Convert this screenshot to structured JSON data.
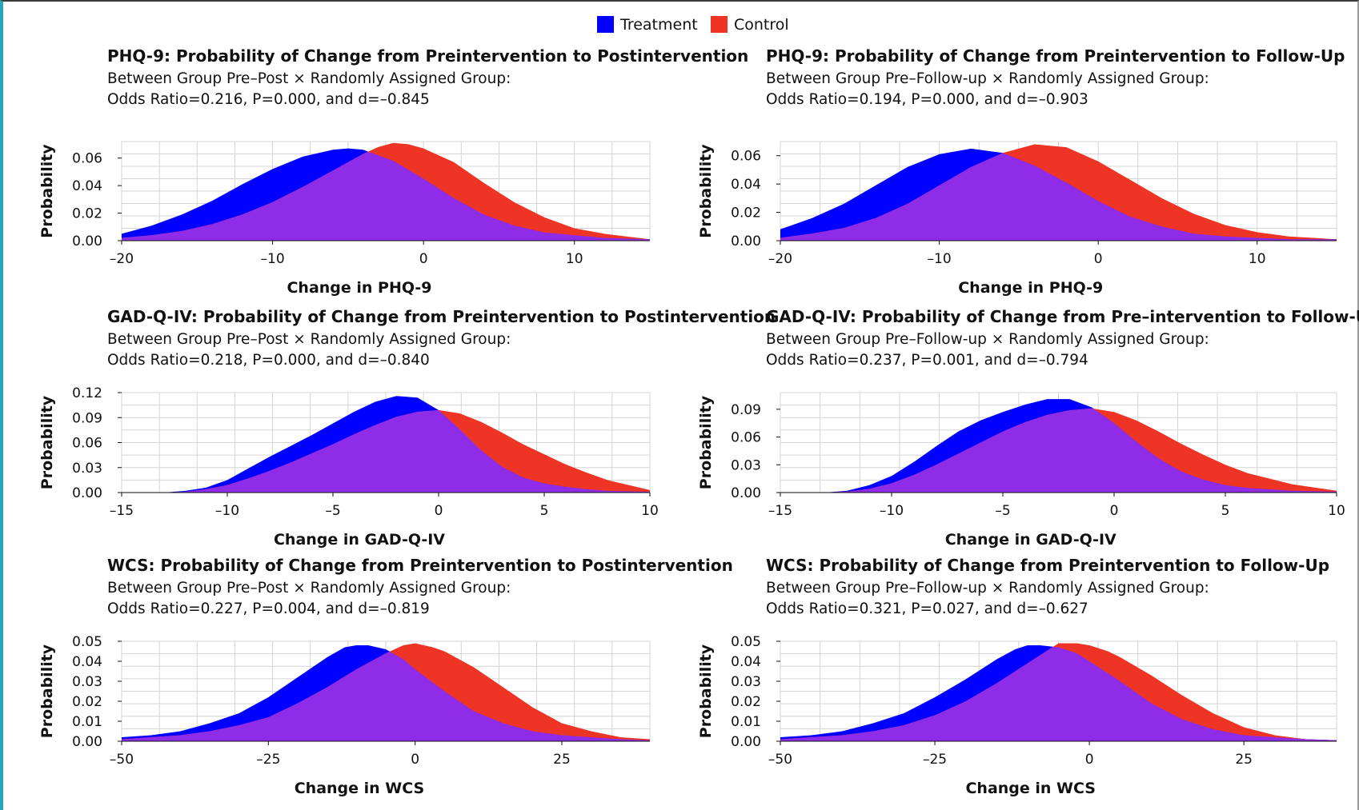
{
  "legend": {
    "treatment_label": "Treatment",
    "control_label": "Control"
  },
  "colors": {
    "treatment": "#0000ff",
    "control": "#ee3424",
    "overlap": "#8e2ce8",
    "grid": "#d4d4d4"
  },
  "chart_data": [
    {
      "type": "area",
      "title": "PHQ-9: Probability of Change from Preintervention to Postintervention",
      "subtitle_line1": "Between Group Pre–Post × Randomly Assigned Group:",
      "subtitle_line2": "Odds Ratio=0.216, P=0.000, and d=–0.845",
      "xlabel": "Change in PHQ-9",
      "ylabel": "Probability",
      "xlim": [
        -20,
        15
      ],
      "ylim": [
        0,
        0.072
      ],
      "xticks": [
        -20,
        -10,
        0,
        10
      ],
      "xtick_labels": [
        "–20",
        "–10",
        "0",
        "10"
      ],
      "yticks": [
        0,
        0.02,
        0.04,
        0.06
      ],
      "ytick_labels": [
        "0.00",
        "0.02",
        "0.04",
        "0.06"
      ],
      "grid": true,
      "series": [
        {
          "name": "Treatment",
          "x": [
            -20,
            -18,
            -16,
            -14,
            -12,
            -10,
            -8,
            -6,
            -5,
            -4,
            -2,
            0,
            2,
            4,
            6,
            8,
            10,
            12,
            15
          ],
          "y": [
            0.005,
            0.011,
            0.019,
            0.029,
            0.041,
            0.052,
            0.061,
            0.066,
            0.067,
            0.066,
            0.058,
            0.045,
            0.031,
            0.019,
            0.011,
            0.006,
            0.004,
            0.002,
            0.001
          ]
        },
        {
          "name": "Control",
          "x": [
            -20,
            -18,
            -16,
            -14,
            -12,
            -10,
            -8,
            -6,
            -4,
            -3,
            -2,
            -1,
            0,
            2,
            4,
            6,
            8,
            10,
            12,
            15
          ],
          "y": [
            0.002,
            0.004,
            0.007,
            0.012,
            0.019,
            0.028,
            0.039,
            0.051,
            0.063,
            0.068,
            0.071,
            0.07,
            0.067,
            0.057,
            0.042,
            0.028,
            0.017,
            0.009,
            0.005,
            0.001
          ]
        }
      ]
    },
    {
      "type": "area",
      "title": "PHQ-9: Probability of Change from Preintervention to Follow-Up",
      "subtitle_line1": "Between Group Pre–Follow-up × Randomly Assigned Group:",
      "subtitle_line2": "Odds Ratio=0.194, P=0.000, and d=–0.903",
      "xlabel": "Change in PHQ-9",
      "ylabel": "Probability",
      "xlim": [
        -20,
        15
      ],
      "ylim": [
        0,
        0.07
      ],
      "xticks": [
        -20,
        -10,
        0,
        10
      ],
      "xtick_labels": [
        "–20",
        "–10",
        "0",
        "10"
      ],
      "yticks": [
        0,
        0.02,
        0.04,
        0.06
      ],
      "ytick_labels": [
        "0.00",
        "0.02",
        "0.04",
        "0.06"
      ],
      "grid": true,
      "series": [
        {
          "name": "Treatment",
          "x": [
            -20,
            -18,
            -16,
            -14,
            -12,
            -10,
            -8,
            -6,
            -4,
            -2,
            0,
            2,
            4,
            6,
            8,
            10,
            12,
            15
          ],
          "y": [
            0.008,
            0.016,
            0.026,
            0.039,
            0.052,
            0.061,
            0.065,
            0.062,
            0.053,
            0.041,
            0.028,
            0.017,
            0.01,
            0.005,
            0.003,
            0.002,
            0.001,
            0.001
          ]
        },
        {
          "name": "Control",
          "x": [
            -20,
            -18,
            -16,
            -14,
            -12,
            -10,
            -8,
            -6,
            -4,
            -2,
            0,
            2,
            4,
            6,
            8,
            10,
            12,
            15
          ],
          "y": [
            0.002,
            0.005,
            0.009,
            0.016,
            0.026,
            0.039,
            0.052,
            0.062,
            0.068,
            0.066,
            0.056,
            0.043,
            0.03,
            0.019,
            0.011,
            0.006,
            0.003,
            0.001
          ]
        }
      ]
    },
    {
      "type": "area",
      "title": "GAD-Q-IV: Probability of Change from Preintervention to Postintervention",
      "subtitle_line1": "Between Group Pre–Post × Randomly Assigned Group:",
      "subtitle_line2": "Odds Ratio=0.218, P=0.000, and d=–0.840",
      "xlabel": "Change in GAD-Q-IV",
      "ylabel": "Probability",
      "xlim": [
        -15,
        10
      ],
      "ylim": [
        0,
        0.12
      ],
      "xticks": [
        -15,
        -10,
        -5,
        0,
        5,
        10
      ],
      "xtick_labels": [
        "–15",
        "–10",
        "–5",
        "0",
        "5",
        "10"
      ],
      "yticks": [
        0,
        0.03,
        0.06,
        0.09,
        0.12
      ],
      "ytick_labels": [
        "0.00",
        "0.03",
        "0.06",
        "0.09",
        "0.12"
      ],
      "grid": true,
      "series": [
        {
          "name": "Treatment",
          "x": [
            -13,
            -12,
            -11,
            -10,
            -9,
            -8,
            -7,
            -6,
            -5,
            -4,
            -3,
            -2,
            -1,
            0,
            1,
            2,
            3,
            4,
            5,
            6,
            7,
            8,
            10
          ],
          "y": [
            0.0,
            0.002,
            0.006,
            0.015,
            0.029,
            0.043,
            0.056,
            0.069,
            0.083,
            0.097,
            0.109,
            0.116,
            0.114,
            0.099,
            0.076,
            0.051,
            0.031,
            0.018,
            0.011,
            0.007,
            0.004,
            0.002,
            0.001
          ]
        },
        {
          "name": "Control",
          "x": [
            -13,
            -12,
            -11,
            -10,
            -9,
            -8,
            -7,
            -6,
            -5,
            -4,
            -3,
            -2,
            -1,
            0,
            1,
            2,
            3,
            4,
            5,
            6,
            7,
            8,
            10
          ],
          "y": [
            0.0,
            0.001,
            0.004,
            0.009,
            0.017,
            0.026,
            0.036,
            0.047,
            0.058,
            0.07,
            0.081,
            0.091,
            0.097,
            0.099,
            0.095,
            0.085,
            0.072,
            0.058,
            0.046,
            0.034,
            0.024,
            0.015,
            0.003
          ]
        }
      ]
    },
    {
      "type": "area",
      "title": "GAD-Q-IV: Probability of Change from Pre–intervention to Follow-Up",
      "subtitle_line1": "Between Group Pre–Follow-up × Randomly Assigned Group:",
      "subtitle_line2": "Odds Ratio=0.237, P=0.001, and d=–0.794",
      "xlabel": "Change in GAD-Q-IV",
      "ylabel": "Probability",
      "xlim": [
        -15,
        10
      ],
      "ylim": [
        0,
        0.108
      ],
      "xticks": [
        -15,
        -10,
        -5,
        0,
        5,
        10
      ],
      "xtick_labels": [
        "–15",
        "–10",
        "–5",
        "0",
        "5",
        "10"
      ],
      "yticks": [
        0,
        0.03,
        0.06,
        0.09
      ],
      "ytick_labels": [
        "0.00",
        "0.03",
        "0.06",
        "0.09"
      ],
      "grid": true,
      "series": [
        {
          "name": "Treatment",
          "x": [
            -13,
            -12,
            -11,
            -10,
            -9,
            -8,
            -7,
            -6,
            -5,
            -4,
            -3,
            -2,
            -1,
            0,
            1,
            2,
            3,
            4,
            5,
            6,
            8,
            10
          ],
          "y": [
            0.0,
            0.002,
            0.008,
            0.018,
            0.033,
            0.05,
            0.066,
            0.078,
            0.087,
            0.095,
            0.101,
            0.101,
            0.092,
            0.075,
            0.055,
            0.037,
            0.023,
            0.014,
            0.008,
            0.005,
            0.002,
            0.001
          ]
        },
        {
          "name": "Control",
          "x": [
            -13,
            -12,
            -11,
            -10,
            -9,
            -8,
            -7,
            -6,
            -5,
            -4,
            -3,
            -2,
            -1,
            0,
            1,
            2,
            3,
            4,
            5,
            6,
            8,
            10
          ],
          "y": [
            0.0,
            0.001,
            0.004,
            0.01,
            0.019,
            0.03,
            0.042,
            0.054,
            0.066,
            0.076,
            0.084,
            0.089,
            0.091,
            0.087,
            0.078,
            0.066,
            0.053,
            0.041,
            0.03,
            0.021,
            0.009,
            0.002
          ]
        }
      ]
    },
    {
      "type": "area",
      "title": "WCS: Probability of Change from Preintervention to Postintervention",
      "subtitle_line1": "Between Group Pre–Post × Randomly Assigned Group:",
      "subtitle_line2": "Odds Ratio=0.227, P=0.004, and d=–0.819",
      "xlabel": "Change in WCS",
      "ylabel": "Probability",
      "xlim": [
        -50,
        40
      ],
      "ylim": [
        0,
        0.05
      ],
      "xticks": [
        -50,
        -25,
        0,
        25
      ],
      "xtick_labels": [
        "–50",
        "–25",
        "0",
        "25"
      ],
      "yticks": [
        0,
        0.01,
        0.02,
        0.03,
        0.04,
        0.05
      ],
      "ytick_labels": [
        "0.00",
        "0.01",
        "0.02",
        "0.03",
        "0.04",
        "0.05"
      ],
      "grid": true,
      "series": [
        {
          "name": "Treatment",
          "x": [
            -50,
            -45,
            -40,
            -35,
            -30,
            -25,
            -20,
            -15,
            -12,
            -10,
            -8,
            -5,
            -2,
            0,
            5,
            10,
            15,
            20,
            25,
            30,
            35,
            40
          ],
          "y": [
            0.002,
            0.003,
            0.005,
            0.009,
            0.014,
            0.022,
            0.032,
            0.042,
            0.047,
            0.048,
            0.048,
            0.046,
            0.041,
            0.036,
            0.025,
            0.015,
            0.009,
            0.005,
            0.003,
            0.002,
            0.001,
            0.0005
          ]
        },
        {
          "name": "Control",
          "x": [
            -50,
            -45,
            -40,
            -35,
            -30,
            -25,
            -20,
            -15,
            -10,
            -5,
            -2,
            0,
            3,
            5,
            10,
            15,
            20,
            25,
            30,
            35,
            40
          ],
          "y": [
            0.001,
            0.002,
            0.003,
            0.005,
            0.008,
            0.012,
            0.019,
            0.027,
            0.036,
            0.044,
            0.048,
            0.049,
            0.047,
            0.045,
            0.037,
            0.027,
            0.017,
            0.009,
            0.005,
            0.002,
            0.001
          ]
        }
      ]
    },
    {
      "type": "area",
      "title": "WCS: Probability of Change from Preintervention to Follow-Up",
      "subtitle_line1": "Between Group Pre–Follow-up × Randomly Assigned Group:",
      "subtitle_line2": "Odds Ratio=0.321, P=0.027, and d=–0.627",
      "xlabel": "Change in WCS",
      "ylabel": "Probability",
      "xlim": [
        -50,
        40
      ],
      "ylim": [
        0,
        0.05
      ],
      "xticks": [
        -50,
        -25,
        0,
        25
      ],
      "xtick_labels": [
        "–50",
        "–25",
        "0",
        "25"
      ],
      "yticks": [
        0,
        0.01,
        0.02,
        0.03,
        0.04,
        0.05
      ],
      "ytick_labels": [
        "0.00",
        "0.01",
        "0.02",
        "0.03",
        "0.04",
        "0.05"
      ],
      "grid": true,
      "series": [
        {
          "name": "Treatment",
          "x": [
            -50,
            -45,
            -40,
            -35,
            -30,
            -25,
            -20,
            -15,
            -12,
            -10,
            -8,
            -5,
            -2,
            0,
            5,
            10,
            15,
            20,
            25,
            30,
            35,
            40
          ],
          "y": [
            0.002,
            0.003,
            0.005,
            0.009,
            0.014,
            0.022,
            0.031,
            0.041,
            0.046,
            0.048,
            0.048,
            0.047,
            0.044,
            0.04,
            0.03,
            0.019,
            0.011,
            0.006,
            0.003,
            0.002,
            0.001,
            0.0005
          ]
        },
        {
          "name": "Control",
          "x": [
            -50,
            -45,
            -40,
            -35,
            -30,
            -25,
            -20,
            -15,
            -10,
            -7,
            -5,
            -2,
            0,
            3,
            5,
            10,
            15,
            20,
            25,
            30,
            35,
            40
          ],
          "y": [
            0.001,
            0.002,
            0.003,
            0.005,
            0.008,
            0.013,
            0.02,
            0.029,
            0.039,
            0.045,
            0.049,
            0.049,
            0.048,
            0.045,
            0.042,
            0.033,
            0.023,
            0.014,
            0.007,
            0.003,
            0.001,
            0.0005
          ]
        }
      ]
    }
  ]
}
